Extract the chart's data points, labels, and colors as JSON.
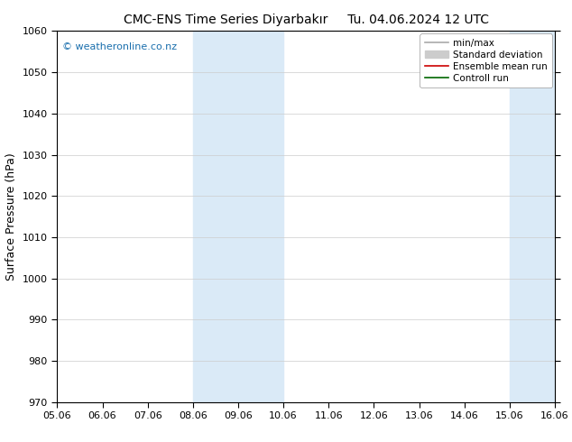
{
  "title": "CMC-ENS Time Series Diyarbakır     Tu. 04.06.2024 12 UTC",
  "ylabel": "Surface Pressure (hPa)",
  "ylim": [
    970,
    1060
  ],
  "yticks": [
    970,
    980,
    990,
    1000,
    1010,
    1020,
    1030,
    1040,
    1050,
    1060
  ],
  "xtick_labels": [
    "05.06",
    "06.06",
    "07.06",
    "08.06",
    "09.06",
    "10.06",
    "11.06",
    "12.06",
    "13.06",
    "14.06",
    "15.06",
    "16.06"
  ],
  "shaded_regions": [
    {
      "xstart": 3,
      "xend": 5,
      "color": "#daeaf7"
    },
    {
      "xstart": 10,
      "xend": 12,
      "color": "#daeaf7"
    }
  ],
  "watermark": "© weatheronline.co.nz",
  "watermark_color": "#1a6fad",
  "background_color": "#ffffff",
  "legend_entries": [
    {
      "label": "min/max",
      "color": "#aaaaaa",
      "lw": 1.2,
      "type": "line"
    },
    {
      "label": "Standard deviation",
      "color": "#cccccc",
      "lw": 6,
      "type": "patch"
    },
    {
      "label": "Ensemble mean run",
      "color": "#cc0000",
      "lw": 1.2,
      "type": "line"
    },
    {
      "label": "Controll run",
      "color": "#006600",
      "lw": 1.2,
      "type": "line"
    }
  ],
  "title_fontsize": 10,
  "ylabel_fontsize": 9,
  "tick_fontsize": 8,
  "legend_fontsize": 7.5
}
